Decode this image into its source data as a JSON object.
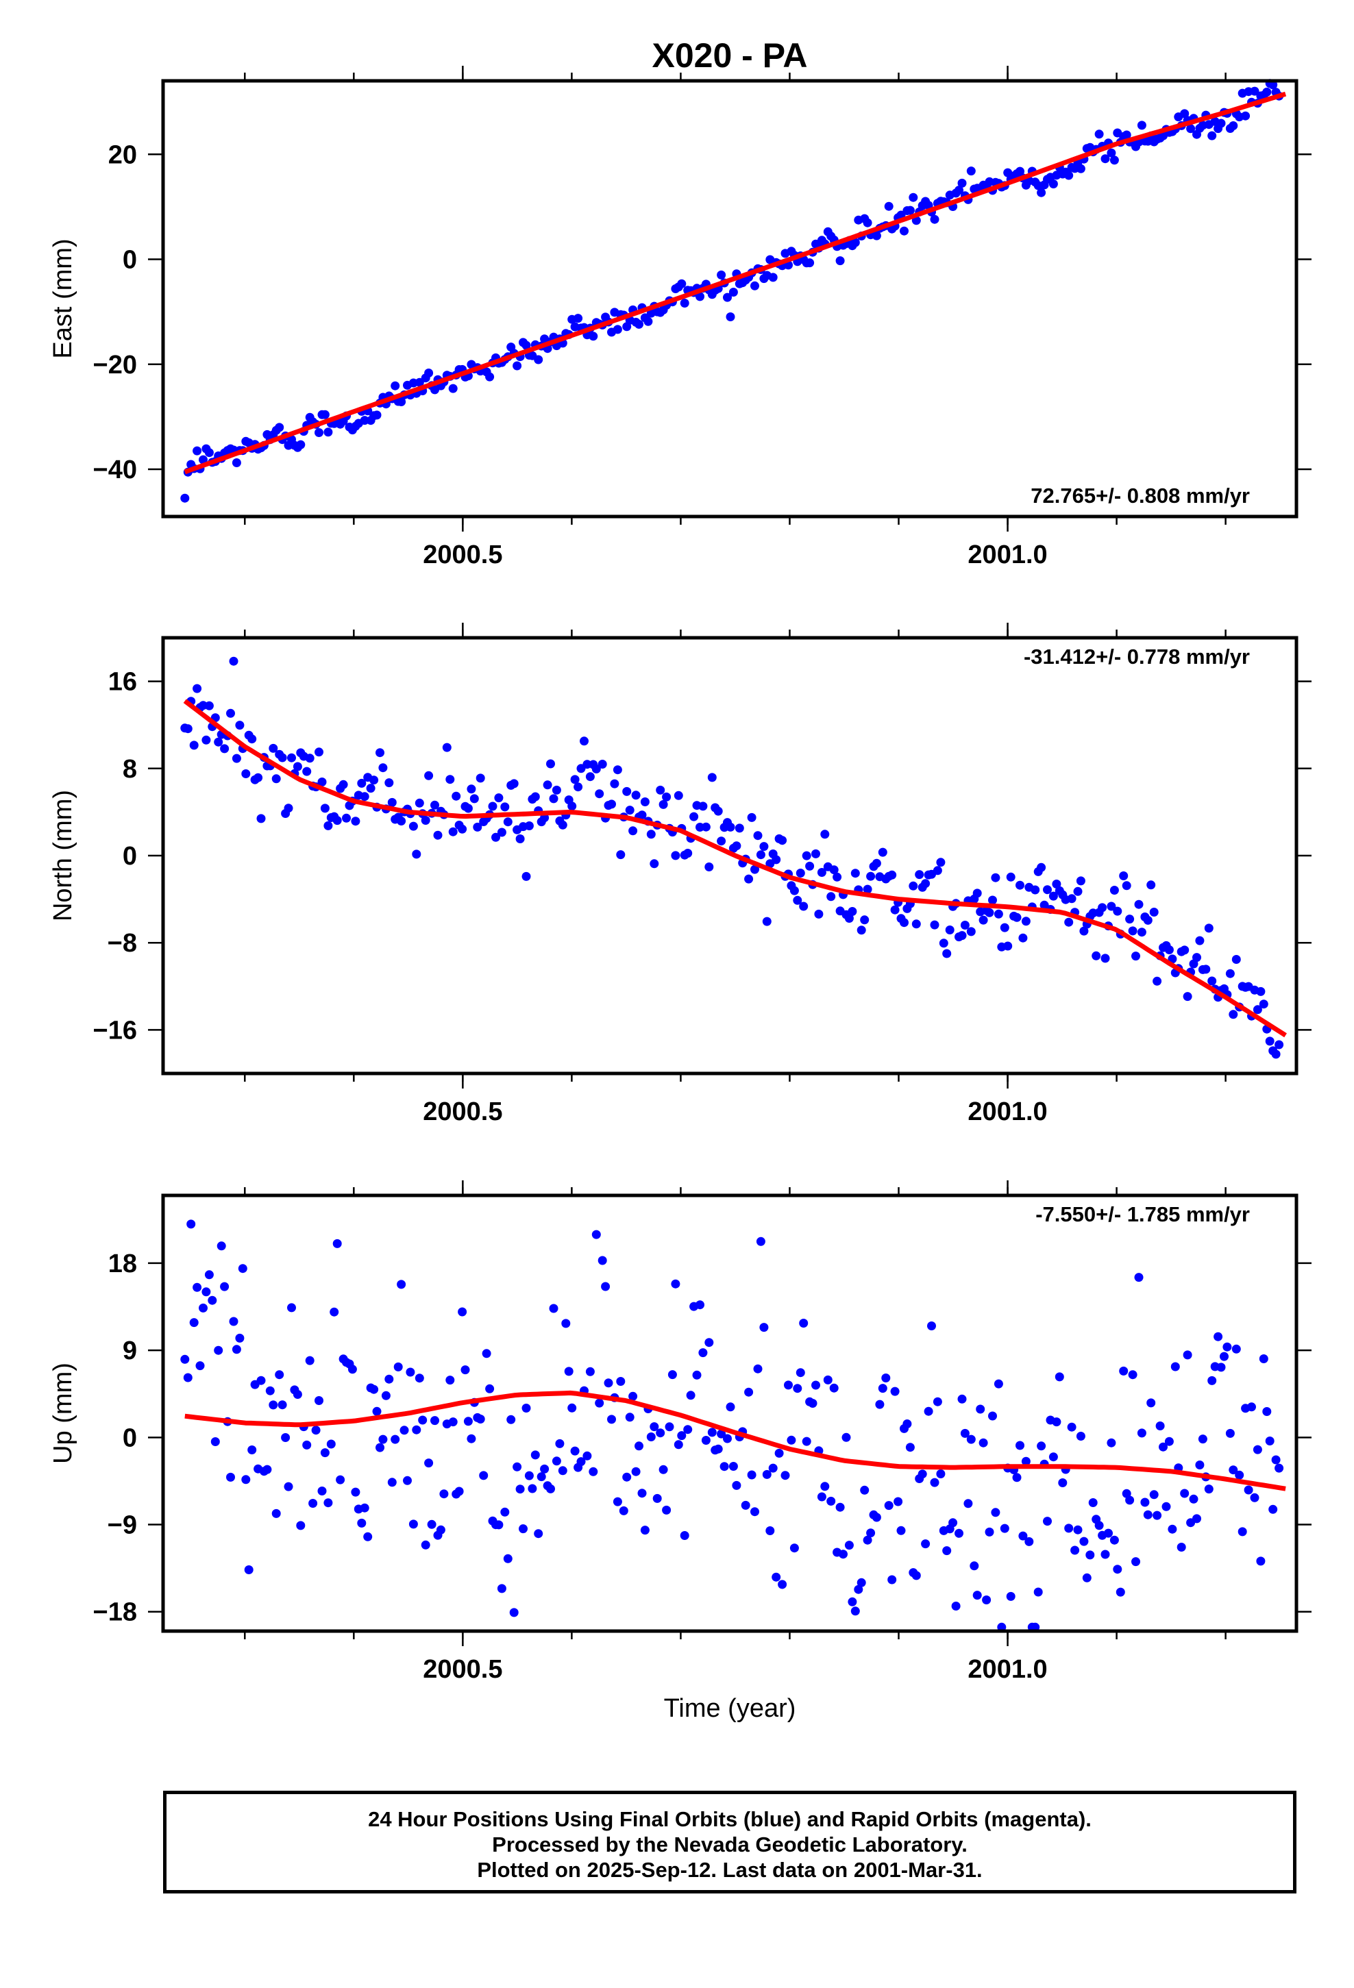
{
  "title": "X020 - PA",
  "chart_data": [
    {
      "type": "scatter",
      "panel": "east",
      "ylabel": "East (mm)",
      "xlim": [
        2000.225,
        2001.265
      ],
      "ylim": [
        -49,
        34
      ],
      "yticks": [
        -40,
        -20,
        0,
        20
      ],
      "xticks": [
        2000.5,
        2001.0
      ],
      "rate_label": "72.765+/- 0.808 mm/yr",
      "rate_position": "bottom-right",
      "fit_line": {
        "x": [
          2000.245,
          2000.4,
          2000.6,
          2000.8,
          2001.0,
          2001.1,
          2001.2,
          2001.255
        ],
        "y": [
          -40.5,
          -29,
          -14.5,
          0,
          14.5,
          22,
          28,
          31.5
        ]
      },
      "series": [
        {
          "color": "#0000ff",
          "noise": 1.3,
          "jump": {
            "x": 2000.245,
            "y": -45.5
          }
        }
      ]
    },
    {
      "type": "scatter",
      "panel": "north",
      "ylabel": "North (mm)",
      "xlim": [
        2000.225,
        2001.265
      ],
      "ylim": [
        -20,
        20
      ],
      "yticks": [
        -16,
        -8,
        0,
        8,
        16
      ],
      "xticks": [
        2000.5,
        2001.0
      ],
      "rate_label": "-31.412+/- 0.778 mm/yr",
      "rate_position": "top-right",
      "fit_line": {
        "x": [
          2000.245,
          2000.3,
          2000.35,
          2000.4,
          2000.45,
          2000.5,
          2000.55,
          2000.6,
          2000.65,
          2000.7,
          2000.75,
          2000.8,
          2000.85,
          2000.9,
          2000.95,
          2001.0,
          2001.05,
          2001.1,
          2001.15,
          2001.2,
          2001.255
        ],
        "y": [
          14.2,
          10,
          7,
          5,
          4,
          3.6,
          3.8,
          4,
          3.5,
          2.3,
          0,
          -2,
          -3.3,
          -4,
          -4.4,
          -4.7,
          -5.2,
          -6.8,
          -10,
          -13,
          -16.5
        ]
      },
      "series": [
        {
          "color": "#0000ff",
          "noise": 1.8
        }
      ]
    },
    {
      "type": "scatter",
      "panel": "up",
      "ylabel": "Up (mm)",
      "xlabel": "Time (year)",
      "xlim": [
        2000.225,
        2001.265
      ],
      "ylim": [
        -20,
        25
      ],
      "yticks": [
        -18,
        -9,
        0,
        9,
        18
      ],
      "xticks": [
        2000.5,
        2001.0
      ],
      "rate_label": "-7.550+/- 1.785 mm/yr",
      "rate_position": "top-right",
      "fit_line": {
        "x": [
          2000.245,
          2000.3,
          2000.35,
          2000.4,
          2000.45,
          2000.5,
          2000.55,
          2000.6,
          2000.65,
          2000.7,
          2000.75,
          2000.8,
          2000.85,
          2000.9,
          2000.95,
          2001.0,
          2001.05,
          2001.1,
          2001.15,
          2001.2,
          2001.255
        ],
        "y": [
          2.2,
          1.5,
          1.3,
          1.7,
          2.5,
          3.6,
          4.4,
          4.6,
          3.8,
          2.3,
          0.5,
          -1.2,
          -2.4,
          -3,
          -3.1,
          -3,
          -3,
          -3.1,
          -3.5,
          -4.3,
          -5.3
        ]
      },
      "series": [
        {
          "color": "#0000ff",
          "noise": 6.5
        }
      ]
    }
  ],
  "footer": {
    "line1": "24 Hour Positions Using Final Orbits (blue) and Rapid Orbits (magenta).",
    "line2": "Processed by the Nevada Geodetic Laboratory.",
    "line3": "Plotted on 2025-Sep-12. Last data on 2001-Mar-31."
  }
}
